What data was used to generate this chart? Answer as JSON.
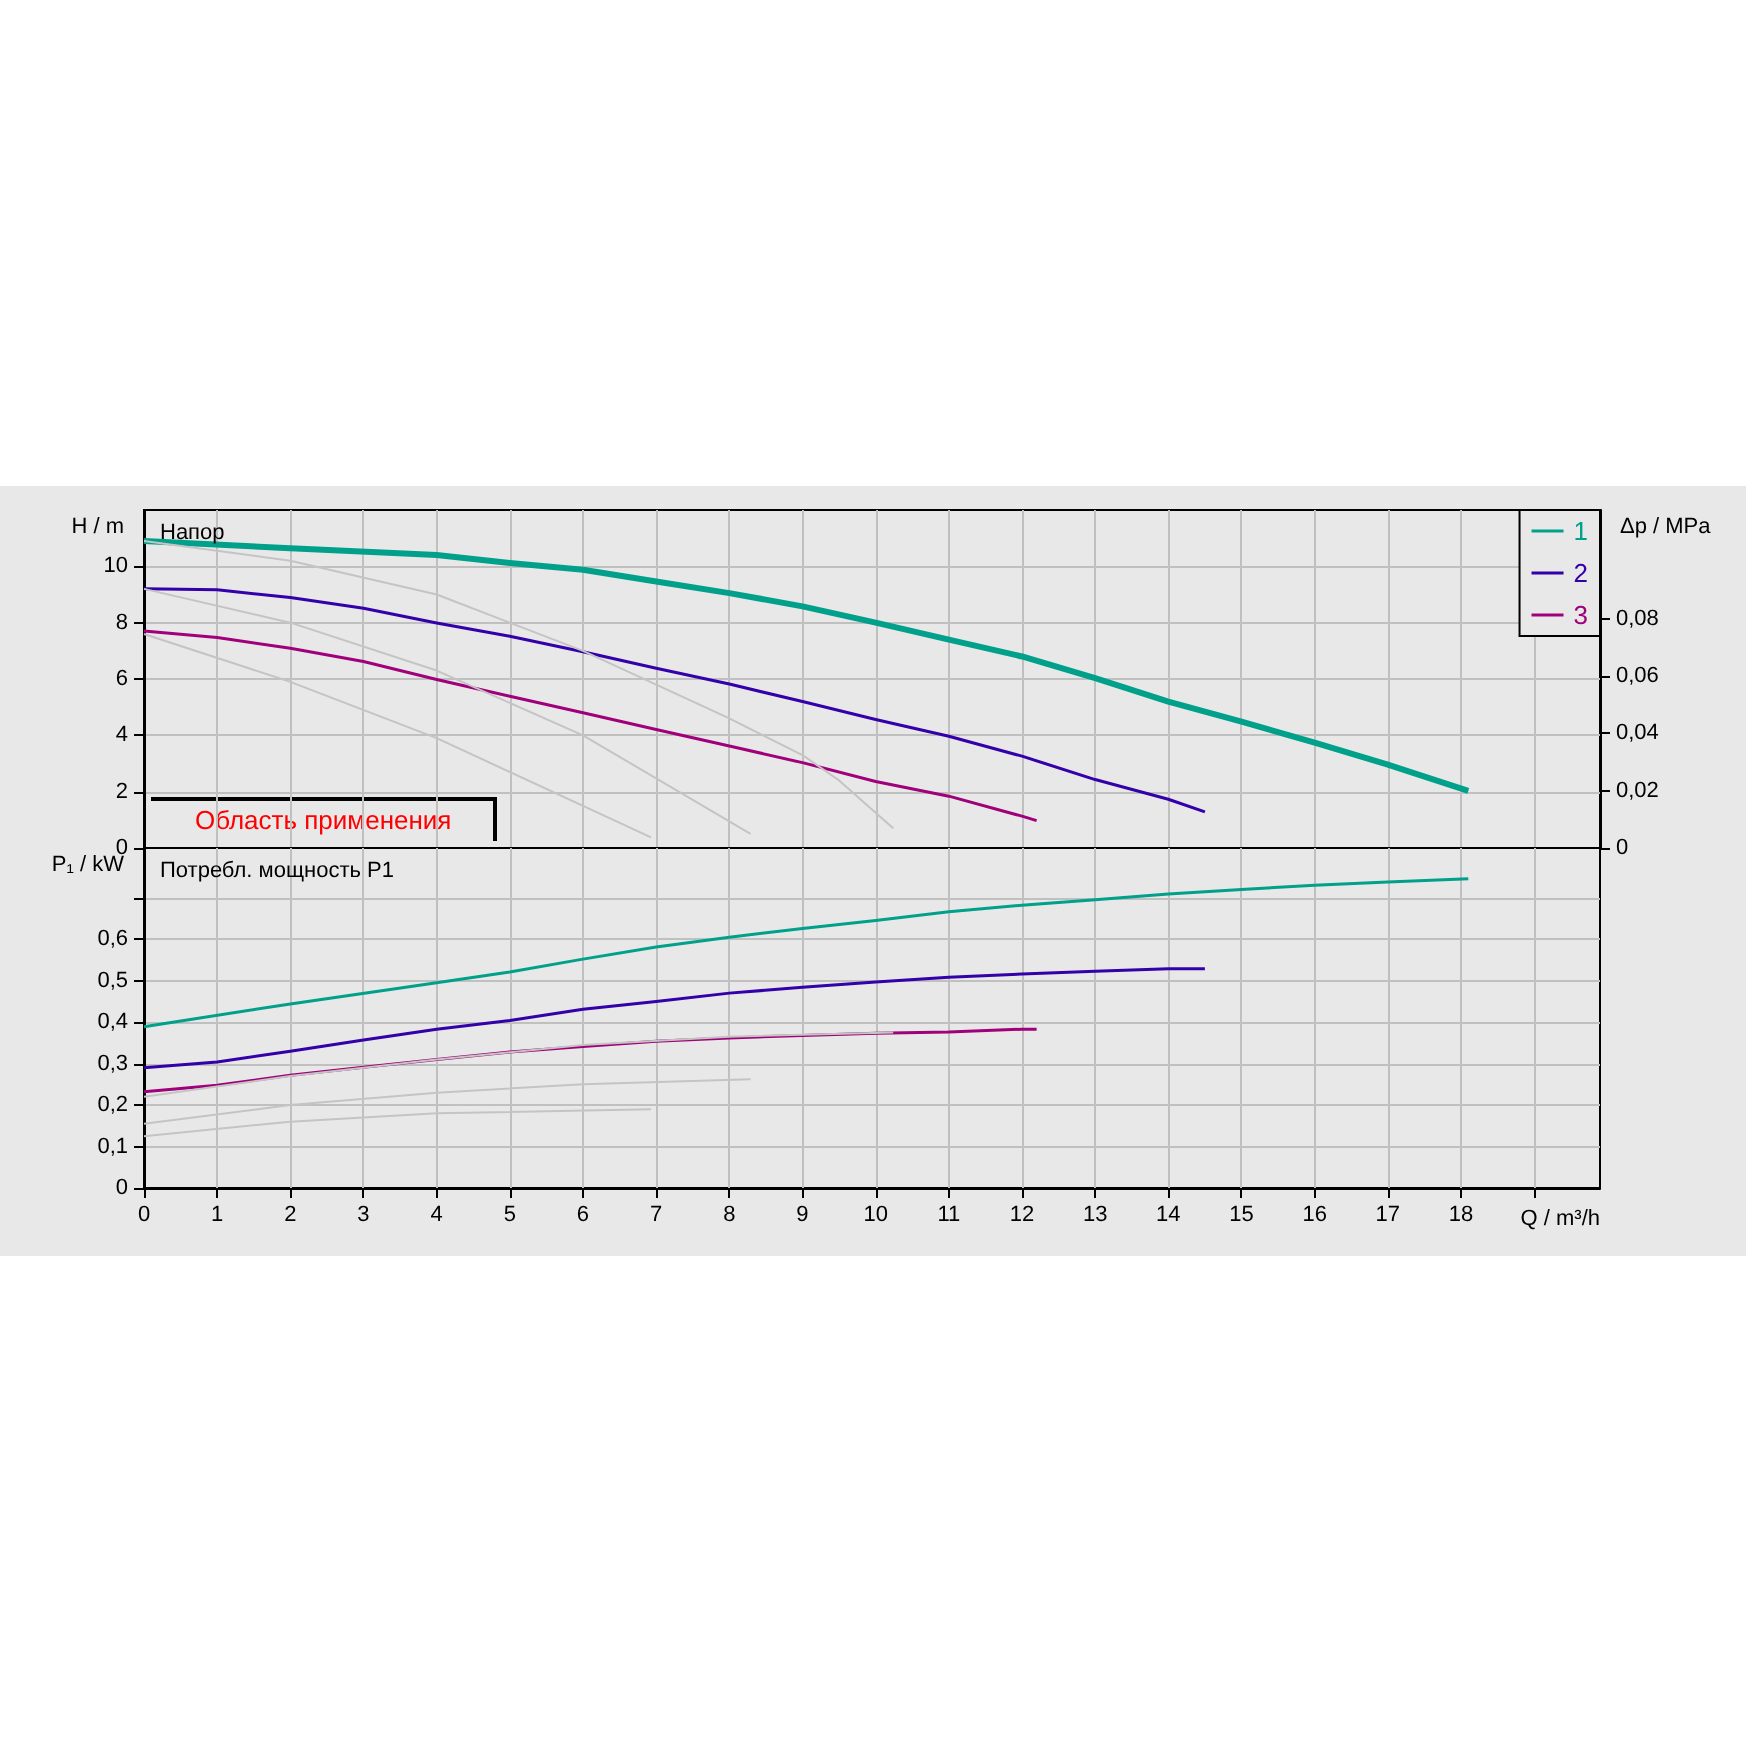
{
  "chart_data": [
    {
      "type": "line",
      "ylabel": "H / m",
      "y2label": "Δp / MPa",
      "annotations": [
        "Напор",
        "Область применения"
      ],
      "xlim": [
        0,
        19.9
      ],
      "xticks": [
        0,
        1,
        2,
        3,
        4,
        5,
        6,
        7,
        8,
        9,
        10,
        11,
        12,
        13,
        14,
        15,
        16,
        17,
        18,
        {
          "value": 19,
          "label": null
        }
      ],
      "ylim": [
        0,
        12
      ],
      "yticks": [
        0,
        2,
        4,
        6,
        8,
        10
      ],
      "y2lim": [
        0,
        0.118
      ],
      "y2ticks": [
        {
          "value": 0,
          "label": "0"
        },
        {
          "value": 0.02,
          "label": "0,02"
        },
        {
          "value": 0.04,
          "label": "0,04"
        },
        {
          "value": 0.06,
          "label": "0,06"
        },
        {
          "value": 0.08,
          "label": "0,08"
        }
      ],
      "grid": true,
      "legend": "top right",
      "tick_labels": "y",
      "series": [
        {
          "name": "1",
          "color": "#00a08a",
          "x": [
            0,
            2,
            4,
            5,
            6,
            7,
            8,
            9,
            10,
            11,
            12,
            13,
            14,
            15,
            16,
            17,
            18.1
          ],
          "values": [
            10.9,
            10.64,
            10.4,
            10.12,
            9.88,
            9.46,
            9.05,
            8.58,
            8.0,
            7.4,
            6.8,
            6.03,
            5.2,
            4.49,
            3.74,
            2.96,
            2.03
          ]
        },
        {
          "name": "2",
          "color": "#3300aa",
          "x": [
            0,
            1,
            2,
            3,
            4,
            5,
            6,
            7,
            8,
            9,
            10,
            11,
            12,
            13,
            14,
            14.5
          ],
          "values": [
            9.2,
            9.17,
            8.89,
            8.51,
            7.99,
            7.52,
            6.97,
            6.38,
            5.82,
            5.2,
            4.56,
            3.97,
            3.26,
            2.43,
            1.73,
            1.28
          ]
        },
        {
          "name": "3",
          "color": "#a0007a",
          "x": [
            0,
            1,
            2,
            3,
            4,
            5,
            6,
            7,
            8,
            9,
            10,
            11,
            12,
            12.2
          ],
          "values": [
            7.7,
            7.47,
            7.09,
            6.62,
            5.98,
            5.39,
            4.8,
            4.21,
            3.62,
            3.03,
            2.36,
            1.84,
            1.13,
            0.97
          ]
        },
        {
          "color": "#c4c4c4",
          "x": [
            0,
            2,
            4,
            6,
            8,
            9,
            9.5,
            10.24
          ],
          "values": [
            10.9,
            10.2,
            9.0,
            7.0,
            4.6,
            3.3,
            2.4,
            0.7
          ]
        },
        {
          "color": "#c4c4c4",
          "x": [
            0,
            2,
            4,
            6,
            8.29
          ],
          "values": [
            9.2,
            8.0,
            6.3,
            4.0,
            0.5
          ]
        },
        {
          "color": "#c4c4c4",
          "x": [
            0,
            2,
            4,
            6.93
          ],
          "values": [
            7.6,
            5.9,
            3.9,
            0.38
          ]
        }
      ]
    },
    {
      "type": "line",
      "ylabel": "P₁ / kW",
      "xlabel": "Q / m³/h",
      "annotations": [
        "Потребл. мощность P1"
      ],
      "xlim": [
        0,
        19.9
      ],
      "xticks": [
        0,
        1,
        2,
        3,
        4,
        5,
        6,
        7,
        8,
        9,
        10,
        11,
        12,
        13,
        14,
        15,
        16,
        17,
        18,
        {
          "value": 19,
          "label": null
        }
      ],
      "ylim": [
        0,
        0.82
      ],
      "yticks": [
        {
          "value": 0,
          "label": "0"
        },
        {
          "value": 0.1,
          "label": "0,1"
        },
        {
          "value": 0.2,
          "label": "0,2"
        },
        {
          "value": 0.3,
          "label": "0,3"
        },
        {
          "value": 0.4,
          "label": "0,4"
        },
        {
          "value": 0.5,
          "label": "0,5"
        },
        {
          "value": 0.6,
          "label": "0,6"
        },
        {
          "value": 0.7,
          "label": null
        }
      ],
      "grid": true,
      "series": [
        {
          "color": "#00a08a",
          "x": [
            0,
            2,
            4,
            5,
            6,
            7,
            8,
            9,
            10,
            11,
            12,
            13,
            14,
            15,
            16,
            17,
            18.1
          ],
          "values": [
            0.389,
            0.444,
            0.495,
            0.521,
            0.552,
            0.581,
            0.605,
            0.626,
            0.645,
            0.666,
            0.682,
            0.695,
            0.709,
            0.72,
            0.73,
            0.738,
            0.746
          ]
        },
        {
          "color": "#3300aa",
          "x": [
            0,
            1,
            2,
            3,
            4,
            5,
            6,
            7,
            8,
            9,
            10,
            11,
            12,
            13,
            14,
            14.5
          ],
          "values": [
            0.29,
            0.304,
            0.33,
            0.357,
            0.383,
            0.404,
            0.431,
            0.45,
            0.47,
            0.484,
            0.497,
            0.508,
            0.516,
            0.523,
            0.529,
            0.529
          ]
        },
        {
          "color": "#a0007a",
          "x": [
            0,
            1,
            2,
            3,
            4,
            5,
            6,
            7,
            8,
            9,
            10,
            11,
            12,
            12.2
          ],
          "values": [
            0.232,
            0.248,
            0.272,
            0.291,
            0.31,
            0.328,
            0.341,
            0.354,
            0.362,
            0.368,
            0.373,
            0.376,
            0.383,
            0.383
          ]
        },
        {
          "color": "#c4c4c4",
          "x": [
            0,
            2,
            4,
            6,
            8,
            10.24
          ],
          "values": [
            0.22,
            0.27,
            0.31,
            0.345,
            0.365,
            0.375
          ]
        },
        {
          "color": "#c4c4c4",
          "x": [
            0,
            2,
            4,
            6,
            8.29
          ],
          "values": [
            0.155,
            0.2,
            0.23,
            0.25,
            0.262
          ]
        },
        {
          "color": "#c4c4c4",
          "x": [
            0,
            2,
            4,
            6.93
          ],
          "values": [
            0.125,
            0.16,
            0.18,
            0.19
          ]
        }
      ]
    }
  ]
}
